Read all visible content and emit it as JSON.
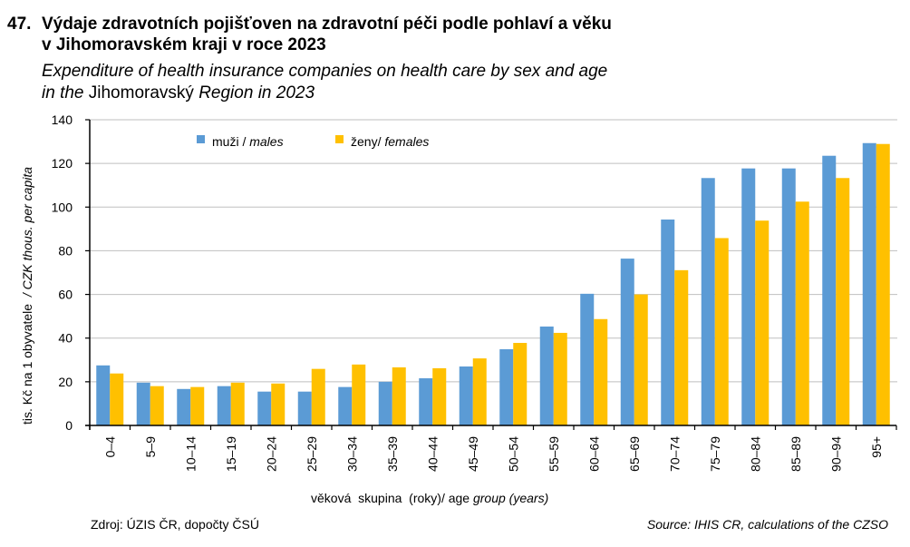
{
  "header": {
    "number": "47.",
    "title_cz_line1": "Výdaje zdravotních pojišťoven na zdravotní péči podle pohlaví a věku",
    "title_cz_line2": "v Jihomoravském kraji v roce 2023",
    "title_en_line1": "Expenditure of health insurance companies on health care by sex and age",
    "title_en_line2_pre": "in the ",
    "title_en_line2_region": "Jihomoravský",
    "title_en_line2_post": " Region in 2023"
  },
  "footer": {
    "source_cz": "Zdroj: ÚZIS ČR, dopočty ČSÚ",
    "source_en": "Source: IHIS CR, calculations of the CZSO"
  },
  "chart_data": {
    "type": "bar",
    "title": "Výdaje zdravotních pojišťoven na zdravotní péči podle pohlaví a věku v Jihomoravském kraji v roce 2023",
    "xlabel_cz": "věková  skupina  (roky)",
    "xlabel_sep": "/ ",
    "xlabel_en_a": "age ",
    "xlabel_en_b": "group (years)",
    "ylabel_cz": "tis. Kč na 1 obyvatele",
    "ylabel_en": "/ CZK thous. per capita",
    "ylim": [
      0,
      140
    ],
    "yticks": [
      0,
      20,
      40,
      60,
      80,
      100,
      120,
      140
    ],
    "grid": true,
    "legend_position": "top-left",
    "categories": [
      "0–4",
      "5–9",
      "10–14",
      "15–19",
      "20–24",
      "25–29",
      "30–34",
      "35–39",
      "40–44",
      "45–49",
      "50–54",
      "55–59",
      "60–64",
      "65–69",
      "70–74",
      "75–79",
      "80–84",
      "85–89",
      "90–94",
      "95+"
    ],
    "series": [
      {
        "name_cz": "muži",
        "name_en": "males",
        "color": "#5B9BD5",
        "values": [
          27.5,
          19.6,
          16.7,
          18.0,
          15.5,
          15.5,
          17.6,
          20.0,
          21.6,
          27.0,
          34.9,
          45.3,
          60.3,
          76.4,
          94.3,
          113.3,
          117.7,
          117.7,
          123.5,
          129.3
        ]
      },
      {
        "name_cz": "ženy",
        "name_en": "females",
        "color": "#FFC000",
        "values": [
          23.8,
          18.0,
          17.6,
          19.6,
          19.2,
          25.9,
          27.9,
          26.6,
          26.2,
          30.7,
          37.8,
          42.4,
          48.7,
          60.0,
          71.1,
          85.8,
          93.8,
          102.5,
          113.3,
          128.9
        ]
      }
    ]
  }
}
